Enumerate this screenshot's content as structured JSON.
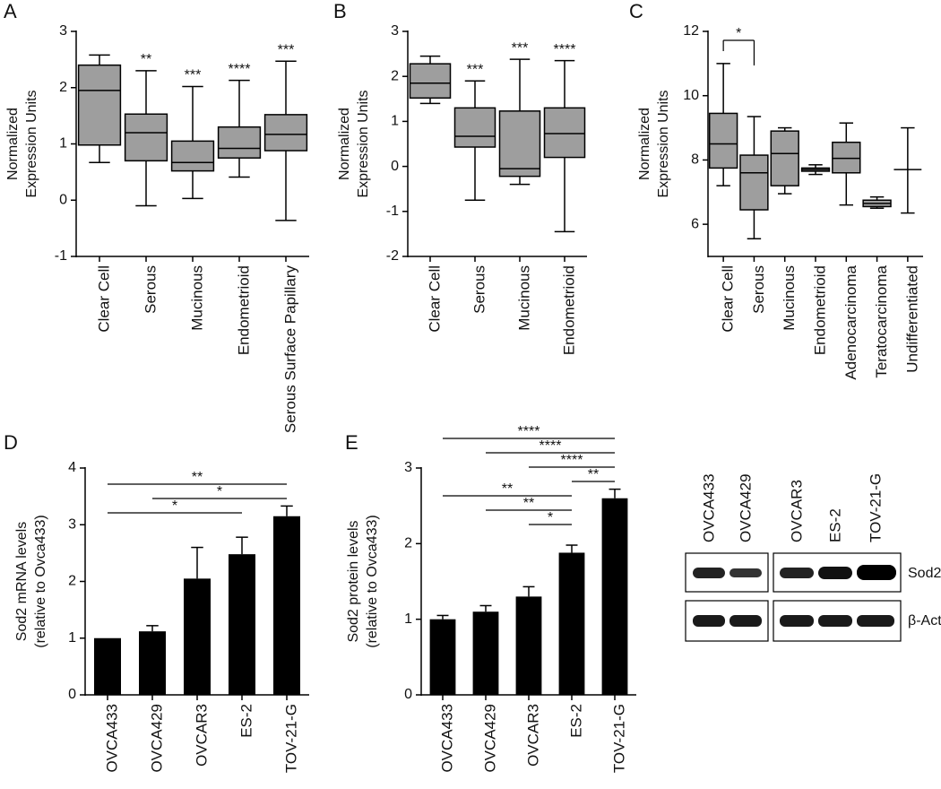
{
  "chart_data": [
    {
      "type": "box",
      "panel": "A",
      "ylabel": [
        "Normalized",
        "Expression Units"
      ],
      "color": "#9e9e9e",
      "categories": [
        "Clear Cell",
        "Serous",
        "Mucinous",
        "Endometrioid",
        "Serous Surface Papillary"
      ],
      "boxes": [
        {
          "min": 0.67,
          "q1": 0.98,
          "median": 1.95,
          "q3": 2.4,
          "max": 2.58
        },
        {
          "min": -0.1,
          "q1": 0.7,
          "median": 1.2,
          "q3": 1.53,
          "max": 2.3
        },
        {
          "min": 0.03,
          "q1": 0.52,
          "median": 0.67,
          "q3": 1.05,
          "max": 2.02
        },
        {
          "min": 0.41,
          "q1": 0.75,
          "median": 0.92,
          "q3": 1.3,
          "max": 2.13
        },
        {
          "min": -0.36,
          "q1": 0.88,
          "median": 1.17,
          "q3": 1.52,
          "max": 2.47
        }
      ],
      "annotations": [
        null,
        "**",
        "***",
        "****",
        "***"
      ],
      "ylim": [
        -1,
        3
      ],
      "yticks": [
        -1,
        0,
        1,
        2,
        3
      ]
    },
    {
      "type": "box",
      "panel": "B",
      "ylabel": [
        "Normalized",
        "Expression Units"
      ],
      "color": "#9e9e9e",
      "categories": [
        "Clear Cell",
        "Serous",
        "Mucinous",
        "Endometrioid"
      ],
      "boxes": [
        {
          "min": 1.4,
          "q1": 1.52,
          "median": 1.85,
          "q3": 2.28,
          "max": 2.45
        },
        {
          "min": -0.75,
          "q1": 0.43,
          "median": 0.67,
          "q3": 1.3,
          "max": 1.9
        },
        {
          "min": -0.4,
          "q1": -0.22,
          "median": -0.05,
          "q3": 1.23,
          "max": 2.38
        },
        {
          "min": -1.45,
          "q1": 0.2,
          "median": 0.73,
          "q3": 1.3,
          "max": 2.35
        }
      ],
      "annotations": [
        null,
        "***",
        "***",
        "****"
      ],
      "ylim": [
        -2,
        3
      ],
      "yticks": [
        -2,
        -1,
        0,
        1,
        2,
        3
      ]
    },
    {
      "type": "box",
      "panel": "C",
      "ylabel": [
        "Normalized",
        "Expression Units"
      ],
      "color": "#9e9e9e",
      "categories": [
        "Clear Cell",
        "Serous",
        "Mucinous",
        "Endometrioid",
        "Adenocarcinoma",
        "Teratocarcinoma",
        "Undifferentiated"
      ],
      "boxes": [
        {
          "min": 7.2,
          "q1": 7.75,
          "median": 8.5,
          "q3": 9.45,
          "max": 11.0
        },
        {
          "min": 5.55,
          "q1": 6.45,
          "median": 7.6,
          "q3": 8.15,
          "max": 9.35
        },
        {
          "min": 6.95,
          "q1": 7.2,
          "median": 8.2,
          "q3": 8.9,
          "max": 9.0
        },
        {
          "min": 7.55,
          "q1": 7.65,
          "median": 7.7,
          "q3": 7.75,
          "max": 7.85
        },
        {
          "min": 6.6,
          "q1": 7.6,
          "median": 8.05,
          "q3": 8.55,
          "max": 9.15
        },
        {
          "min": 6.5,
          "q1": 6.55,
          "median": 6.65,
          "q3": 6.75,
          "max": 6.85
        },
        {
          "min": 6.35,
          "q1": 7.7,
          "median": 7.7,
          "q3": 7.7,
          "max": 9.0
        }
      ],
      "comparisons": [
        {
          "between": [
            "Clear Cell",
            "Serous"
          ],
          "label": "*"
        }
      ],
      "ylim": [
        5,
        12
      ],
      "yticks": [
        6,
        8,
        10,
        12
      ]
    },
    {
      "type": "bar",
      "panel": "D",
      "ylabel": [
        "Sod2 mRNA levels",
        "(relative to Ovca433)"
      ],
      "color": "#000000",
      "categories": [
        "OVCA433",
        "OVCA429",
        "OVCAR3",
        "ES-2",
        "TOV-21-G"
      ],
      "values": [
        1.0,
        1.12,
        2.05,
        2.48,
        3.15
      ],
      "errors": [
        null,
        0.1,
        0.55,
        0.3,
        0.18
      ],
      "comparisons": [
        {
          "between": [
            "OVCA433",
            "TOV-21-G"
          ],
          "label": "**"
        },
        {
          "between": [
            "OVCA429",
            "TOV-21-G"
          ],
          "label": "*"
        },
        {
          "between": [
            "OVCA433",
            "ES-2"
          ],
          "label": "*"
        }
      ],
      "ylim": [
        0,
        4
      ],
      "yticks": [
        0,
        1,
        2,
        3,
        4
      ]
    },
    {
      "type": "bar",
      "panel": "E",
      "ylabel": [
        "Sod2 protein levels",
        "(relative to Ovca433)"
      ],
      "color": "#000000",
      "categories": [
        "OVCA433",
        "OVCA429",
        "OVCAR3",
        "ES-2",
        "TOV-21-G"
      ],
      "values": [
        1.0,
        1.1,
        1.3,
        1.88,
        2.6
      ],
      "errors": [
        0.05,
        0.08,
        0.13,
        0.1,
        0.12
      ],
      "comparisons": [
        {
          "between": [
            "OVCA433",
            "TOV-21-G"
          ],
          "label": "****"
        },
        {
          "between": [
            "OVCA429",
            "TOV-21-G"
          ],
          "label": "****"
        },
        {
          "between": [
            "OVCAR3",
            "TOV-21-G"
          ],
          "label": "****"
        },
        {
          "between": [
            "ES-2",
            "TOV-21-G"
          ],
          "label": "**"
        },
        {
          "between": [
            "OVCA433",
            "ES-2"
          ],
          "label": "**"
        },
        {
          "between": [
            "OVCA429",
            "ES-2"
          ],
          "label": "**"
        },
        {
          "between": [
            "OVCAR3",
            "ES-2"
          ],
          "label": "*"
        }
      ],
      "ylim": [
        0,
        3
      ],
      "yticks": [
        0,
        1,
        2,
        3
      ]
    }
  ],
  "blot": {
    "lanes": [
      "OVCA433",
      "OVCA429",
      "OVCAR3",
      "ES-2",
      "TOV-21-G"
    ],
    "rows": [
      "Sod2",
      "β-Actin"
    ]
  }
}
